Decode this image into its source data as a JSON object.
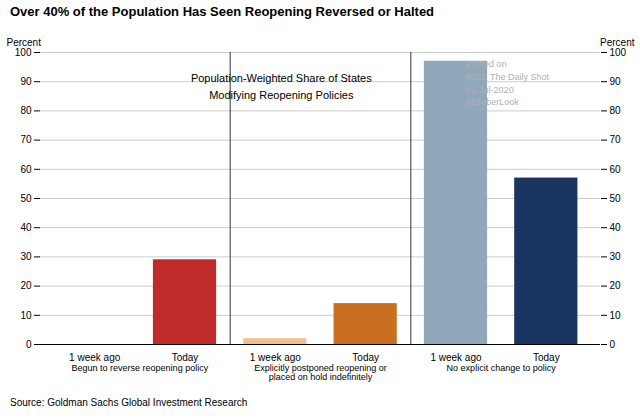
{
  "chart_data": {
    "type": "bar",
    "title": "Over 40% of the Population Has Seen Reopening Reversed or Halted",
    "categories": [
      "1 week ago",
      "Today",
      "1 week ago",
      "Today",
      "1 week ago",
      "Today"
    ],
    "values": [
      0,
      29,
      2,
      14,
      97,
      57
    ],
    "colors": [
      "#bf2a2a",
      "#bf2a2a",
      "#f2c090",
      "#c87020",
      "#8fa8bc",
      "#1a3560"
    ],
    "ylim": [
      0,
      100
    ],
    "yticks": [
      0,
      10,
      20,
      30,
      40,
      50,
      60,
      70,
      80,
      90,
      100
    ],
    "ylabel": "Percent",
    "y2lim": [
      0,
      100
    ],
    "y2ticks": [
      0,
      10,
      20,
      30,
      40,
      50,
      60,
      70,
      80,
      90,
      100
    ],
    "y2label": "Percent",
    "grid": true,
    "groups": [
      [
        "Begun to reverse reopening policy"
      ],
      [
        "Explicitly postponed reopening or",
        "placed on hold indefinitely"
      ],
      [
        "No explicit change to policy"
      ]
    ],
    "annotations": [
      "Population-Weighted Share of States",
      "Modifying Reopening Policies"
    ],
    "watermark": [
      "Posted on",
      "WSJ: The Daily Shot",
      "01-Jul-2020",
      "@SoberLook"
    ],
    "source": "Source: Goldman Sachs Global Investment Research"
  }
}
